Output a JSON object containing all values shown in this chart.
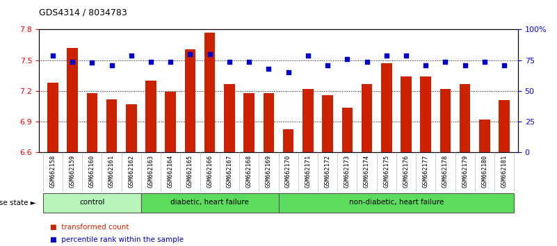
{
  "title": "GDS4314 / 8034783",
  "samples": [
    "GSM662158",
    "GSM662159",
    "GSM662160",
    "GSM662161",
    "GSM662162",
    "GSM662163",
    "GSM662164",
    "GSM662165",
    "GSM662166",
    "GSM662167",
    "GSM662168",
    "GSM662169",
    "GSM662170",
    "GSM662171",
    "GSM662172",
    "GSM662173",
    "GSM662174",
    "GSM662175",
    "GSM662176",
    "GSM662177",
    "GSM662178",
    "GSM662179",
    "GSM662180",
    "GSM662181"
  ],
  "transformed_count": [
    7.28,
    7.62,
    7.18,
    7.12,
    7.07,
    7.3,
    7.19,
    7.61,
    7.77,
    7.27,
    7.18,
    7.18,
    6.83,
    7.22,
    7.16,
    7.04,
    7.27,
    7.47,
    7.34,
    7.34,
    7.22,
    7.27,
    6.92,
    7.11
  ],
  "percentile": [
    79,
    74,
    73,
    71,
    79,
    74,
    74,
    80,
    80,
    74,
    74,
    68,
    65,
    79,
    71,
    76,
    74,
    79,
    79,
    71,
    74,
    71,
    74,
    71
  ],
  "group_info": [
    {
      "label": "control",
      "start": 0,
      "end": 4,
      "color": "#b8f4b8"
    },
    {
      "label": "diabetic, heart failure",
      "start": 5,
      "end": 11,
      "color": "#5cdc5c"
    },
    {
      "label": "non-diabetic, heart failure",
      "start": 12,
      "end": 23,
      "color": "#5cdc5c"
    }
  ],
  "ylim_left": [
    6.6,
    7.8
  ],
  "ylim_right": [
    0,
    100
  ],
  "yticks_left": [
    6.6,
    6.9,
    7.2,
    7.5,
    7.8
  ],
  "yticks_right": [
    0,
    25,
    50,
    75,
    100
  ],
  "ytick_labels_right": [
    "0",
    "25",
    "50",
    "75",
    "100%"
  ],
  "bar_color": "#cc2200",
  "dot_color": "#0000cc",
  "bar_width": 0.55,
  "bg_color": "#ffffff",
  "xtick_bg": "#cccccc",
  "disease_state_label": "disease state",
  "legend_bar_label": "transformed count",
  "legend_dot_label": "percentile rank within the sample"
}
